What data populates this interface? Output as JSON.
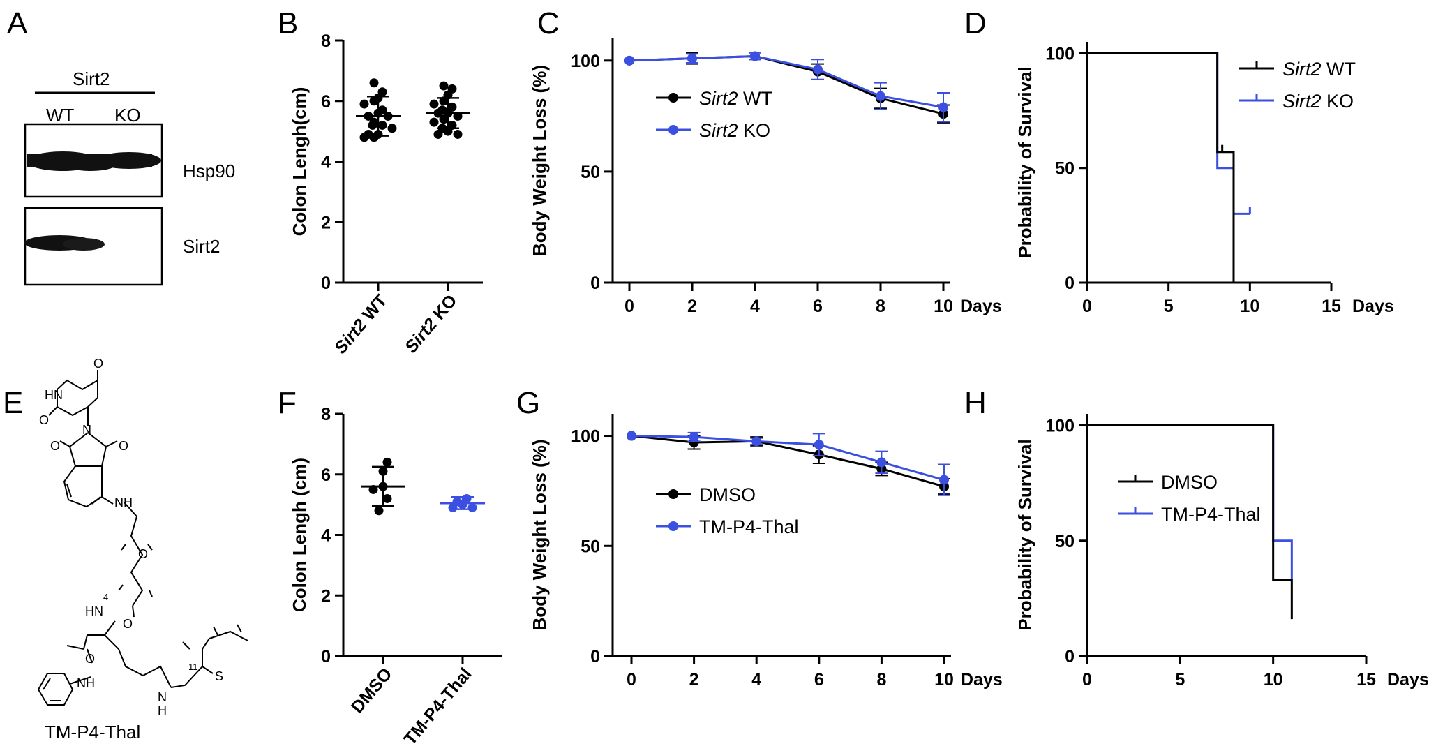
{
  "colors": {
    "wt": "#000000",
    "ko": "#3b4fe0"
  },
  "panels": {
    "A": "A",
    "B": "B",
    "C": "C",
    "D": "D",
    "E": "E",
    "F": "F",
    "G": "G",
    "H": "H"
  },
  "blot": {
    "group": "Sirt2",
    "lanes": [
      "WT",
      "KO"
    ],
    "band1": "Hsp90",
    "band2": "Sirt2"
  },
  "structure": {
    "name": "TM-P4-Thal",
    "atoms": [
      "O",
      "HN",
      "O",
      "N",
      "O",
      "O",
      "NH",
      "O",
      "O",
      "HN",
      "O",
      "NH",
      "N",
      "H",
      "S"
    ],
    "subscripts": [
      "4",
      "11"
    ]
  },
  "legend_labels": {
    "C": [
      {
        "italic": "Sirt2",
        "rest": " WT"
      },
      {
        "italic": "Sirt2",
        "rest": " KO"
      }
    ],
    "D": [
      {
        "italic": "Sirt2",
        "rest": " WT"
      },
      {
        "italic": "Sirt2",
        "rest": " KO"
      }
    ],
    "G": [
      "DMSO",
      "TM-P4-Thal"
    ],
    "H": [
      "DMSO",
      "TM-P4-Thal"
    ]
  },
  "chart_data": [
    {
      "panel": "B",
      "type": "scatter",
      "ylabel": "Colon Lengh(cm)",
      "xlabel": "",
      "ylim": [
        0,
        8
      ],
      "yticks": [
        "0",
        "2",
        "4",
        "6",
        "8"
      ],
      "categories": [
        {
          "italic": "Sirt2",
          "rest": " WT"
        },
        {
          "italic": "Sirt2",
          "rest": " KO"
        }
      ],
      "series": [
        {
          "name": "Sirt2 WT",
          "color": "#000000",
          "mean": 5.5,
          "sd": 0.65,
          "values": [
            6.6,
            6.3,
            6.1,
            6.0,
            5.9,
            5.7,
            5.6,
            5.5,
            5.5,
            5.3,
            5.2,
            5.2,
            5.1,
            4.9,
            4.9,
            4.8,
            4.8
          ]
        },
        {
          "name": "Sirt2 KO",
          "color": "#000000",
          "mean": 5.6,
          "sd": 0.5,
          "values": [
            6.5,
            6.4,
            6.2,
            6.0,
            5.9,
            5.8,
            5.7,
            5.6,
            5.6,
            5.5,
            5.4,
            5.3,
            5.2,
            5.1,
            5.0,
            4.9,
            4.9
          ]
        }
      ]
    },
    {
      "panel": "C",
      "type": "line",
      "ylabel": "Body Weight Loss (%)",
      "xlabel": "Days",
      "ylim": [
        0,
        110
      ],
      "yticks": [
        "0",
        "50",
        "100"
      ],
      "x": [
        0,
        2,
        4,
        6,
        8,
        10
      ],
      "xticks": [
        "0",
        "2",
        "4",
        "6",
        "8",
        "10"
      ],
      "series": [
        {
          "name": "Sirt2 WT",
          "color": "#000000",
          "values": [
            100,
            101,
            102,
            95,
            83,
            76
          ],
          "err": [
            0,
            2.5,
            1.5,
            3.5,
            4.5,
            4
          ]
        },
        {
          "name": "Sirt2 KO",
          "color": "#3b4fe0",
          "values": [
            100,
            101,
            102,
            96,
            84,
            79
          ],
          "err": [
            0,
            2,
            1.5,
            4.5,
            6,
            6.5
          ]
        }
      ]
    },
    {
      "panel": "D",
      "type": "line",
      "step": true,
      "ylabel": "Probability of Survival",
      "xlabel": "Days",
      "ylim": [
        0,
        105
      ],
      "yticks": [
        "0",
        "50",
        "100"
      ],
      "xlim": [
        0,
        15
      ],
      "xticks": [
        "0",
        "5",
        "10",
        "15"
      ],
      "series": [
        {
          "name": "Sirt2 WT",
          "color": "#000000",
          "steps": [
            [
              0,
              100
            ],
            [
              8,
              57
            ],
            [
              9,
              0
            ]
          ],
          "end": 9,
          "censor": [
            8.3
          ]
        },
        {
          "name": "Sirt2 KO",
          "color": "#3b4fe0",
          "steps": [
            [
              0,
              100
            ],
            [
              8,
              50
            ],
            [
              9,
              30
            ]
          ],
          "end": 10,
          "censor": [
            10
          ]
        }
      ]
    },
    {
      "panel": "F",
      "type": "scatter",
      "ylabel": "Colon Lengh (cm)",
      "xlabel": "",
      "ylim": [
        0,
        8
      ],
      "yticks": [
        "0",
        "2",
        "4",
        "6",
        "8"
      ],
      "categories": [
        "DMSO",
        "TM-P4-Thal"
      ],
      "series": [
        {
          "name": "DMSO",
          "color": "#000000",
          "mean": 5.6,
          "sd": 0.65,
          "values": [
            6.4,
            6.1,
            5.6,
            5.5,
            5.2,
            4.8
          ]
        },
        {
          "name": "TM-P4-Thal",
          "color": "#3b4fe0",
          "mean": 5.05,
          "sd": 0.2,
          "values": [
            5.2,
            5.1,
            5.0,
            4.9,
            4.9
          ]
        }
      ]
    },
    {
      "panel": "G",
      "type": "line",
      "ylabel": "Body Weight Loss (%)",
      "xlabel": "Days",
      "ylim": [
        0,
        110
      ],
      "yticks": [
        "0",
        "50",
        "100"
      ],
      "x": [
        0,
        2,
        4,
        6,
        8,
        10
      ],
      "xticks": [
        "0",
        "2",
        "4",
        "6",
        "8",
        "10"
      ],
      "series": [
        {
          "name": "DMSO",
          "color": "#000000",
          "values": [
            100,
            97,
            97.5,
            91.5,
            85,
            77
          ],
          "err": [
            0,
            3,
            2,
            4,
            3,
            3.5
          ]
        },
        {
          "name": "TM-P4-Thal",
          "color": "#3b4fe0",
          "values": [
            100,
            99.5,
            97.5,
            96,
            88,
            80
          ],
          "err": [
            0,
            2,
            1.5,
            5,
            5,
            7
          ]
        }
      ]
    },
    {
      "panel": "H",
      "type": "line",
      "step": true,
      "ylabel": "Probability of Survival",
      "xlabel": "Days",
      "ylim": [
        0,
        105
      ],
      "yticks": [
        "0",
        "50",
        "100"
      ],
      "xlim": [
        0,
        15
      ],
      "xticks": [
        "0",
        "5",
        "10",
        "15"
      ],
      "series": [
        {
          "name": "DMSO",
          "color": "#000000",
          "steps": [
            [
              0,
              100
            ],
            [
              10,
              33
            ],
            [
              11,
              16
            ]
          ],
          "end": 11,
          "censor": []
        },
        {
          "name": "TM-P4-Thal",
          "color": "#3b4fe0",
          "steps": [
            [
              0,
              100
            ],
            [
              10,
              50
            ],
            [
              11,
              33
            ]
          ],
          "end": 11,
          "censor": []
        }
      ]
    }
  ]
}
